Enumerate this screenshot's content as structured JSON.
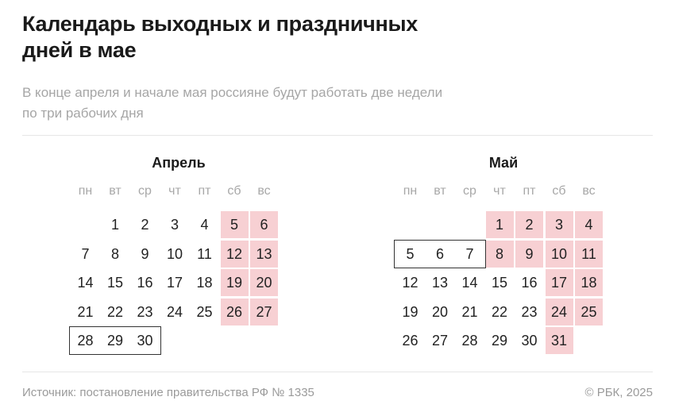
{
  "header": {
    "title_line1": "Календарь выходных и праздничных",
    "title_line2": "дней в мае",
    "subtitle_line1": "В конце апреля и начале мая россияне будут работать две недели",
    "subtitle_line2": "по три рабочих дня"
  },
  "weekdays": [
    "пн",
    "вт",
    "ср",
    "чт",
    "пт",
    "сб",
    "вс"
  ],
  "colors": {
    "holiday": "#f7d0d3",
    "workday_box": "#333333"
  },
  "months": [
    {
      "name": "Апрель",
      "weeks": [
        [
          null,
          1,
          2,
          3,
          4,
          5,
          6
        ],
        [
          7,
          8,
          9,
          10,
          11,
          12,
          13
        ],
        [
          14,
          15,
          16,
          17,
          18,
          19,
          20
        ],
        [
          21,
          22,
          23,
          24,
          25,
          26,
          27
        ],
        [
          28,
          29,
          30,
          null,
          null,
          null,
          null
        ]
      ],
      "days_off": [
        5,
        6,
        12,
        13,
        19,
        20,
        26,
        27
      ],
      "boxed_workdays": [
        28,
        29,
        30
      ]
    },
    {
      "name": "Май",
      "weeks": [
        [
          null,
          null,
          null,
          1,
          2,
          3,
          4
        ],
        [
          5,
          6,
          7,
          8,
          9,
          10,
          11
        ],
        [
          12,
          13,
          14,
          15,
          16,
          17,
          18
        ],
        [
          19,
          20,
          21,
          22,
          23,
          24,
          25
        ],
        [
          26,
          27,
          28,
          29,
          30,
          31,
          null
        ]
      ],
      "days_off": [
        1,
        2,
        3,
        4,
        8,
        9,
        10,
        11,
        17,
        18,
        24,
        25,
        31
      ],
      "boxed_workdays": [
        5,
        6,
        7
      ]
    }
  ],
  "footer": {
    "source": "Источник: постановление правительства РФ № 1335",
    "copyright": "© РБК, 2025"
  }
}
